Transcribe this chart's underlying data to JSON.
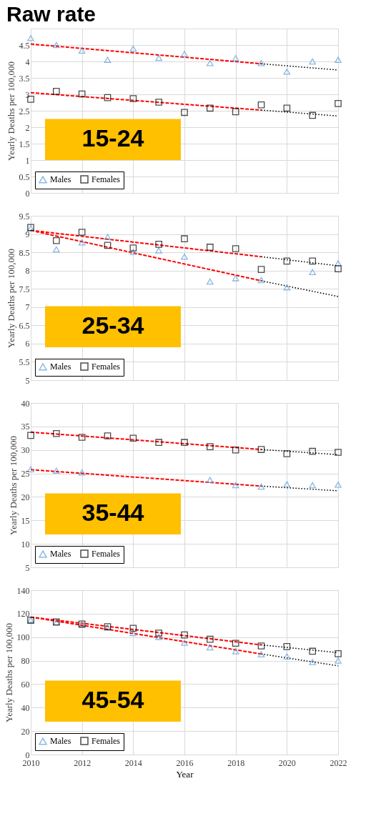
{
  "chart_data": [
    {
      "type": "scatter",
      "title": "Raw rate",
      "ylabel": "Yearly Deaths per 100,000",
      "annotations": [
        "15-24"
      ],
      "xlim": [
        2010,
        2022
      ],
      "xticks": [
        2010,
        2012,
        2014,
        2016,
        2018,
        2020,
        2022
      ],
      "ylim": [
        0,
        5
      ],
      "yticks": [
        0,
        0.5,
        1,
        1.5,
        2,
        2.5,
        3,
        3.5,
        4,
        4.5
      ],
      "tick_labels": "y",
      "grid": true,
      "legend": "bottom left",
      "x": [
        2010,
        2011,
        2012,
        2013,
        2014,
        2015,
        2016,
        2017,
        2018,
        2019,
        2020,
        2021,
        2022
      ],
      "series": [
        {
          "name": "Males",
          "color": "#5b9bd5",
          "marker": "triangle",
          "values": [
            4.71,
            4.5,
            4.33,
            4.05,
            4.39,
            4.11,
            4.23,
            3.95,
            4.1,
            3.95,
            3.69,
            4.0,
            4.05
          ]
        },
        {
          "name": "Females",
          "color": "#000000",
          "marker": "square",
          "values": [
            2.85,
            3.09,
            3.01,
            2.9,
            2.87,
            2.76,
            2.45,
            2.58,
            2.47,
            2.68,
            2.58,
            2.36,
            2.72
          ]
        },
        {
          "type": "line",
          "color": "#ff0000",
          "line_style": "dashed",
          "x": [
            2010,
            2019
          ],
          "values": [
            4.53,
            3.93
          ]
        },
        {
          "type": "line",
          "color": "#000000",
          "line_style": "dotted",
          "x": [
            2019,
            2022
          ],
          "values": [
            3.93,
            3.74
          ]
        },
        {
          "type": "line",
          "color": "#ff0000",
          "line_style": "dashed",
          "x": [
            2010,
            2019
          ],
          "values": [
            3.05,
            2.52
          ]
        },
        {
          "type": "line",
          "color": "#000000",
          "line_style": "dotted",
          "x": [
            2019,
            2022
          ],
          "values": [
            2.52,
            2.34
          ]
        }
      ]
    },
    {
      "type": "scatter",
      "ylabel": "Yearly Deaths per 100,000",
      "annotations": [
        "25-34"
      ],
      "xlim": [
        2010,
        2022
      ],
      "xticks": [
        2010,
        2012,
        2014,
        2016,
        2018,
        2020,
        2022
      ],
      "ylim": [
        5,
        9.5
      ],
      "yticks": [
        5,
        5.5,
        6,
        6.5,
        7,
        7.5,
        8,
        8.5,
        9,
        9.5
      ],
      "tick_labels": "y",
      "grid": true,
      "legend": "bottom left",
      "x": [
        2010,
        2011,
        2012,
        2013,
        2014,
        2015,
        2016,
        2017,
        2018,
        2019,
        2020,
        2021,
        2022
      ],
      "series": [
        {
          "name": "Males",
          "color": "#5b9bd5",
          "marker": "triangle",
          "values": [
            9.16,
            8.58,
            8.77,
            8.92,
            8.51,
            8.55,
            8.38,
            7.7,
            7.79,
            7.74,
            7.54,
            7.96,
            8.2
          ]
        },
        {
          "name": "Females",
          "color": "#000000",
          "marker": "square",
          "values": [
            9.18,
            8.82,
            9.05,
            8.69,
            8.62,
            8.72,
            8.87,
            8.64,
            8.6,
            8.03,
            8.26,
            8.26,
            8.05
          ]
        },
        {
          "type": "line",
          "color": "#ff0000",
          "line_style": "dashed",
          "x": [
            2010,
            2019
          ],
          "values": [
            9.1,
            7.72
          ]
        },
        {
          "type": "line",
          "color": "#000000",
          "line_style": "dotted",
          "x": [
            2019,
            2022
          ],
          "values": [
            7.72,
            7.29
          ]
        },
        {
          "type": "line",
          "color": "#ff0000",
          "line_style": "dashed",
          "x": [
            2010,
            2019
          ],
          "values": [
            9.1,
            8.38
          ]
        },
        {
          "type": "line",
          "color": "#000000",
          "line_style": "dotted",
          "x": [
            2019,
            2022
          ],
          "values": [
            8.38,
            8.13
          ]
        }
      ]
    },
    {
      "type": "scatter",
      "ylabel": "Yearly Deaths per 100,000",
      "annotations": [
        "35-44"
      ],
      "xlim": [
        2010,
        2022
      ],
      "xticks": [
        2010,
        2012,
        2014,
        2016,
        2018,
        2020,
        2022
      ],
      "ylim": [
        5,
        40
      ],
      "yticks": [
        5,
        10,
        15,
        20,
        25,
        30,
        35,
        40
      ],
      "tick_labels": "y",
      "grid": true,
      "legend": "bottom left",
      "x": [
        2010,
        2011,
        2012,
        2013,
        2014,
        2015,
        2016,
        2017,
        2018,
        2019,
        2020,
        2021,
        2022
      ],
      "series": [
        {
          "name": "Males",
          "color": "#5b9bd5",
          "marker": "triangle",
          "values": [
            25.9,
            25.6,
            25.2,
            null,
            null,
            null,
            null,
            23.6,
            22.5,
            22.2,
            22.7,
            22.5,
            22.6
          ]
        },
        {
          "name": "Females",
          "color": "#000000",
          "marker": "square",
          "values": [
            33.1,
            33.5,
            32.7,
            33.0,
            32.5,
            31.6,
            31.6,
            30.7,
            30.0,
            30.1,
            29.2,
            29.7,
            29.5
          ]
        },
        {
          "type": "line",
          "color": "#ff0000",
          "line_style": "dashed",
          "x": [
            2010,
            2019
          ],
          "values": [
            25.8,
            22.3
          ]
        },
        {
          "type": "line",
          "color": "#000000",
          "line_style": "dotted",
          "x": [
            2019,
            2022
          ],
          "values": [
            22.3,
            21.3
          ]
        },
        {
          "type": "line",
          "color": "#ff0000",
          "line_style": "dashed",
          "x": [
            2010,
            2019
          ],
          "values": [
            33.8,
            30.1
          ]
        },
        {
          "type": "line",
          "color": "#000000",
          "line_style": "dotted",
          "x": [
            2019,
            2022
          ],
          "values": [
            30.1,
            29.0
          ]
        }
      ]
    },
    {
      "type": "scatter",
      "xlabel": "Year",
      "ylabel": "Yearly Deaths per 100,000",
      "annotations": [
        "45-54"
      ],
      "xlim": [
        2010,
        2022
      ],
      "xticks": [
        2010,
        2012,
        2014,
        2016,
        2018,
        2020,
        2022
      ],
      "ylim": [
        0,
        140
      ],
      "yticks": [
        0,
        20,
        40,
        60,
        80,
        100,
        120,
        140
      ],
      "grid": true,
      "legend": "bottom left",
      "x": [
        2010,
        2011,
        2012,
        2013,
        2014,
        2015,
        2016,
        2017,
        2018,
        2019,
        2020,
        2021,
        2022
      ],
      "series": [
        {
          "name": "Males",
          "color": "#5b9bd5",
          "marker": "triangle",
          "values": [
            114.8,
            112.4,
            110.7,
            108.2,
            103.5,
            100.2,
            95.2,
            91.3,
            88.0,
            85.4,
            83.6,
            78.8,
            80.1
          ]
        },
        {
          "name": "Females",
          "color": "#000000",
          "marker": "square",
          "values": [
            114.4,
            113.0,
            111.2,
            108.9,
            107.6,
            103.5,
            101.9,
            98.2,
            94.8,
            92.5,
            92.0,
            88.0,
            85.9
          ]
        },
        {
          "type": "line",
          "color": "#ff0000",
          "line_style": "dashed",
          "x": [
            2010,
            2019
          ],
          "values": [
            117.1,
            85.7
          ]
        },
        {
          "type": "line",
          "color": "#000000",
          "line_style": "dotted",
          "x": [
            2019,
            2022
          ],
          "values": [
            85.7,
            75.6
          ]
        },
        {
          "type": "line",
          "color": "#ff0000",
          "line_style": "dashed",
          "x": [
            2010,
            2019
          ],
          "values": [
            117.1,
            93.4
          ]
        },
        {
          "type": "line",
          "color": "#000000",
          "line_style": "dotted",
          "x": [
            2019,
            2022
          ],
          "values": [
            93.4,
            86.8
          ]
        }
      ]
    }
  ]
}
